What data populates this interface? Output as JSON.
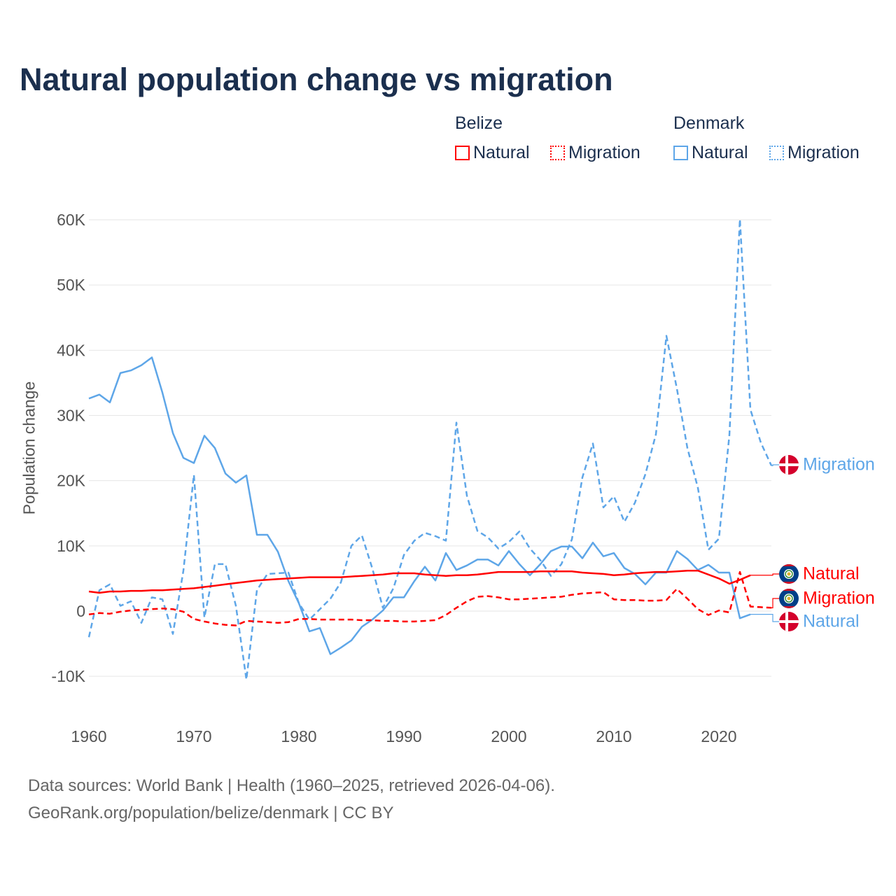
{
  "chart_data": {
    "type": "line",
    "title": "Natural population change vs migration",
    "xlabel": "",
    "ylabel": "Population change",
    "value_unit": "K",
    "xlim": [
      1960,
      2025
    ],
    "ylim": [
      -10,
      60
    ],
    "x_ticks": [
      1960,
      1970,
      1980,
      1990,
      2000,
      2010,
      2020
    ],
    "y_ticks": [
      -10,
      0,
      10,
      20,
      30,
      40,
      50,
      60
    ],
    "y_tick_labels": [
      "-10K",
      "0",
      "10K",
      "20K",
      "30K",
      "40K",
      "50K",
      "60K"
    ],
    "grid": true,
    "legend_placement": "top-right",
    "legend": {
      "groups": [
        {
          "name": "Belize",
          "items": [
            "Natural",
            "Migration"
          ]
        },
        {
          "name": "Denmark",
          "items": [
            "Natural",
            "Migration"
          ]
        }
      ]
    },
    "x_start": 1960,
    "series": [
      {
        "name": "Belize Natural",
        "country": "Belize",
        "kind": "Natural",
        "label": "Natural",
        "color": "#ff0000",
        "dashed": false,
        "values": [
          3.0,
          2.8,
          3.0,
          3.0,
          3.1,
          3.1,
          3.2,
          3.2,
          3.3,
          3.4,
          3.5,
          3.7,
          3.9,
          4.1,
          4.3,
          4.5,
          4.7,
          4.8,
          4.9,
          5.0,
          5.1,
          5.2,
          5.2,
          5.2,
          5.2,
          5.3,
          5.4,
          5.5,
          5.6,
          5.8,
          5.8,
          5.8,
          5.6,
          5.5,
          5.4,
          5.5,
          5.5,
          5.6,
          5.8,
          6.0,
          6.0,
          6.0,
          6.0,
          6.1,
          6.1,
          6.1,
          6.1,
          5.9,
          5.8,
          5.7,
          5.5,
          5.6,
          5.8,
          5.9,
          6.0,
          6.0,
          6.1,
          6.2,
          6.2,
          5.6,
          5.0,
          4.2,
          4.8,
          5.5
        ]
      },
      {
        "name": "Belize Migration",
        "country": "Belize",
        "kind": "Migration",
        "label": "Migration",
        "color": "#ff0000",
        "dashed": true,
        "values": [
          -0.5,
          -0.3,
          -0.4,
          -0.1,
          0.1,
          0.2,
          0.3,
          0.4,
          0.3,
          -0.1,
          -1.2,
          -1.6,
          -1.9,
          -2.1,
          -2.2,
          -1.5,
          -1.6,
          -1.7,
          -1.8,
          -1.7,
          -1.2,
          -1.2,
          -1.3,
          -1.3,
          -1.3,
          -1.3,
          -1.4,
          -1.4,
          -1.5,
          -1.5,
          -1.6,
          -1.6,
          -1.5,
          -1.4,
          -0.6,
          0.5,
          1.5,
          2.2,
          2.3,
          2.1,
          1.8,
          1.8,
          1.9,
          2.0,
          2.1,
          2.2,
          2.5,
          2.7,
          2.8,
          2.9,
          1.8,
          1.7,
          1.7,
          1.6,
          1.6,
          1.7,
          3.4,
          1.9,
          0.3,
          -0.6,
          0.1,
          -0.2,
          6.0,
          0.7,
          0.6,
          0.5
        ]
      },
      {
        "name": "Denmark Natural",
        "country": "Denmark",
        "kind": "Natural",
        "label": "Natural",
        "color": "#5ea6e8",
        "dashed": false,
        "values": [
          32.6,
          33.2,
          32.0,
          36.5,
          36.9,
          37.7,
          38.9,
          33.5,
          27.3,
          23.5,
          22.7,
          26.9,
          25.0,
          21.1,
          19.7,
          20.8,
          11.7,
          11.7,
          9.1,
          4.6,
          1.2,
          -3.1,
          -2.6,
          -6.6,
          -5.6,
          -4.5,
          -2.4,
          -1.3,
          0.1,
          2.1,
          2.1,
          4.6,
          6.8,
          4.7,
          8.9,
          6.3,
          7.0,
          7.9,
          7.9,
          7.0,
          9.2,
          7.2,
          5.5,
          7.2,
          9.2,
          9.9,
          9.9,
          8.1,
          10.5,
          8.4,
          8.9,
          6.6,
          5.7,
          4.1,
          5.9,
          5.9,
          9.2,
          8.0,
          6.3,
          7.1,
          5.9,
          5.9,
          -1.1,
          -0.5
        ]
      },
      {
        "name": "Denmark Migration",
        "country": "Denmark",
        "kind": "Migration",
        "label": "Migration",
        "color": "#5ea6e8",
        "dashed": true,
        "values": [
          -4.0,
          3.2,
          4.1,
          0.8,
          1.5,
          -1.8,
          2.1,
          1.8,
          -3.5,
          6.2,
          20.9,
          -1.0,
          7.2,
          7.2,
          0.8,
          -10.5,
          3.2,
          5.7,
          5.8,
          5.9,
          1.2,
          -1.3,
          0.3,
          1.9,
          4.4,
          10.0,
          11.6,
          6.5,
          0.5,
          3.5,
          8.6,
          10.8,
          12.0,
          11.5,
          10.8,
          28.9,
          17.7,
          12.3,
          11.3,
          9.6,
          10.6,
          12.2,
          9.6,
          7.8,
          5.4,
          7.2,
          11.0,
          20.5,
          25.7,
          15.9,
          17.6,
          13.7,
          16.6,
          21.0,
          27.1,
          42.2,
          34.1,
          25.0,
          18.9,
          9.4,
          11.1,
          27.0,
          60.1,
          30.9,
          25.8,
          22.3
        ]
      }
    ]
  },
  "footer": {
    "line1": "Data sources: World Bank | Health (1960–2025, retrieved 2026-04-06).",
    "line2": "GeoRank.org/population/belize/denmark | CC BY"
  },
  "colors": {
    "title": "#1b2f4e",
    "belize": "#ff0000",
    "denmark": "#5ea6e8",
    "grid": "#e6e6e6",
    "axis_text": "#555555"
  }
}
